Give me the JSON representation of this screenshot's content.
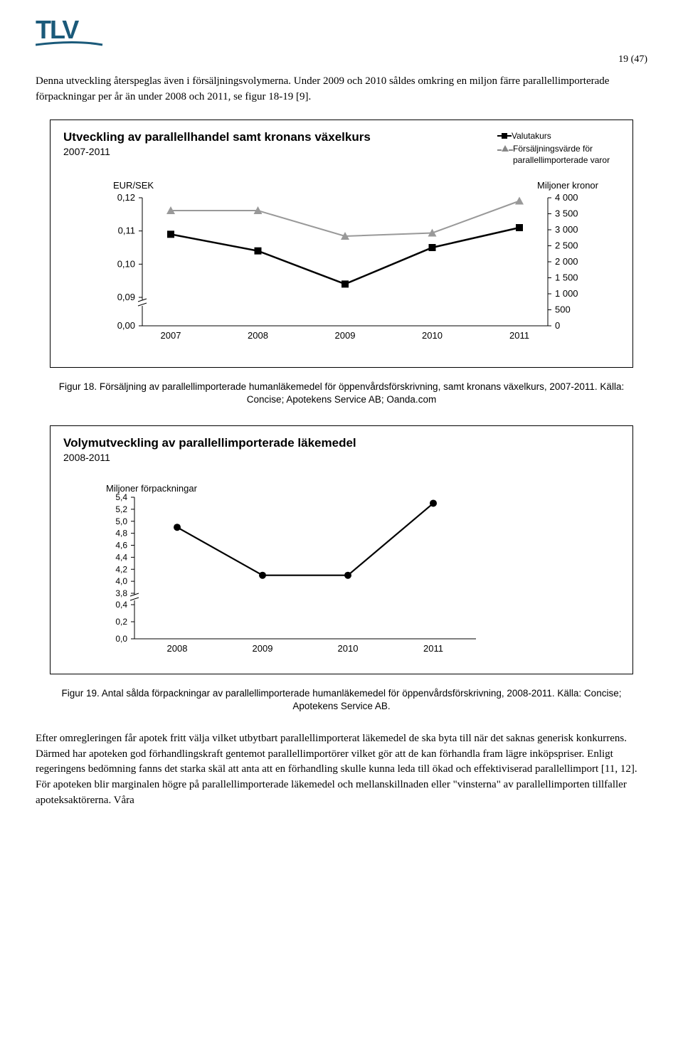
{
  "page_number": "19 (47)",
  "logo_text": "TLV",
  "intro_text": "Denna utveckling återspeglas även i försäljningsvolymerna. Under 2009 och 2010 såldes omkring en miljon färre parallellimporterade förpackningar per år än under 2008 och 2011, se figur 18-19 [9].",
  "chart1": {
    "title": "Utveckling av parallellhandel samt kronans växelkurs",
    "subtitle": "2007-2011",
    "legend": {
      "s1": "Valutakurs",
      "s2": "Försäljningsvärde för parallellimporterade varor"
    },
    "left_axis_label": "EUR/SEK",
    "right_axis_label": "Miljoner kronor",
    "left_ticks": [
      "0,12",
      "0,11",
      "0,10",
      "0,09",
      "0,00"
    ],
    "right_ticks": [
      "4 000",
      "3 500",
      "3 000",
      "2 500",
      "2 000",
      "1 500",
      "1 000",
      "500",
      "0"
    ],
    "x_labels": [
      "2007",
      "2008",
      "2009",
      "2010",
      "2011"
    ],
    "series_black_color": "#000000",
    "series_gray_color": "#999999",
    "series_black_vals": [
      0.109,
      0.104,
      0.094,
      0.105,
      0.111
    ],
    "series_gray_vals": [
      3600,
      3600,
      2800,
      2900,
      3900
    ]
  },
  "caption1": "Figur 18. Försäljning av parallellimporterade humanläkemedel för öppenvårdsförskrivning, samt kronans växelkurs, 2007-2011. Källa: Concise; Apotekens Service AB; Oanda.com",
  "chart2": {
    "title": "Volymutveckling av parallellimporterade läkemedel",
    "subtitle": "2008-2011",
    "y_axis_label": "Miljoner förpackningar",
    "y_ticks_top": [
      "5,4",
      "5,2",
      "5,0",
      "4,8",
      "4,6",
      "4,4",
      "4,2",
      "4,0",
      "3,8"
    ],
    "y_ticks_bottom": [
      "0,4",
      "0,2",
      "0,0"
    ],
    "x_labels": [
      "2008",
      "2009",
      "2010",
      "2011"
    ],
    "series_color": "#000000",
    "series_vals": [
      4.9,
      4.1,
      4.1,
      5.3
    ]
  },
  "caption2": "Figur 19. Antal sålda förpackningar av parallellimporterade humanläkemedel för öppenvårdsförskrivning, 2008-2011. Källa: Concise; Apotekens Service AB.",
  "bottom_text": "Efter omregleringen får apotek fritt välja vilket utbytbart parallellimporterat läkemedel de ska byta till när det saknas generisk konkurrens. Därmed har apoteken god förhandlingskraft gentemot parallellimportörer vilket gör att de kan förhandla fram lägre inköpspriser. Enligt regeringens bedömning fanns det starka skäl att anta att en förhandling skulle kunna leda till ökad och effektiviserad parallellimport [11, 12]. För apoteken blir marginalen högre på parallellimporterade läkemedel och mellanskillnaden eller \"vinsterna\" av parallellimporten tillfaller apoteksaktörerna. Våra"
}
